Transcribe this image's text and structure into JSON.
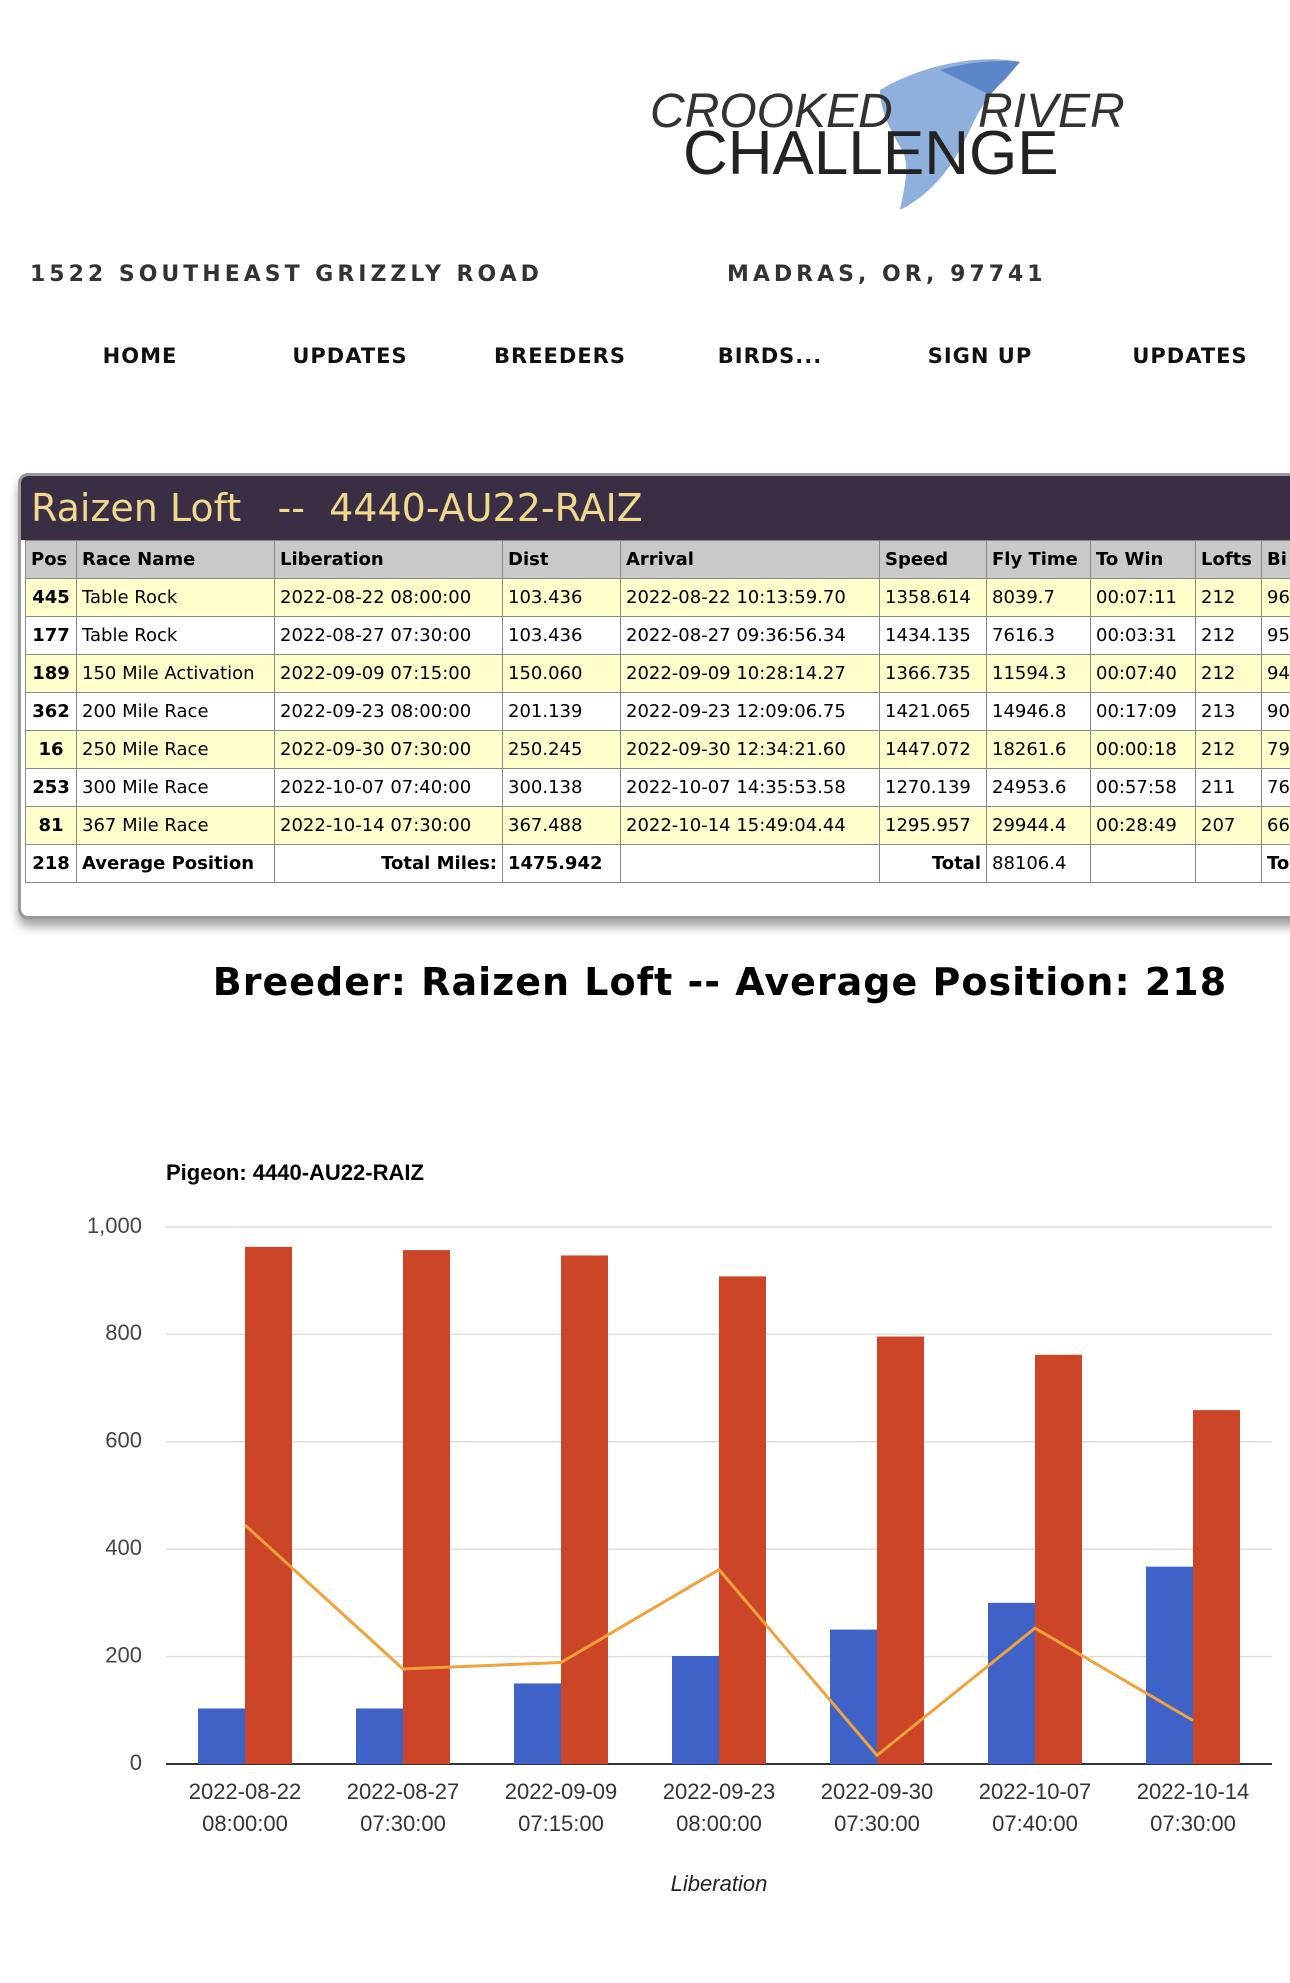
{
  "logo": {
    "line1_left": "CROOKED",
    "line1_right": "RIVER",
    "line2": "CHALLENGE"
  },
  "address": {
    "street": "1522 SOUTHEAST GRIZZLY ROAD",
    "city": "MADRAS, OR, 97741"
  },
  "nav": [
    "HOME",
    "UPDATES",
    "BREEDERS",
    "BIRDS...",
    "SIGN UP",
    "UPDATES"
  ],
  "table": {
    "title_name": "Raizen Loft",
    "title_sep": "--",
    "title_band": "4440-AU22-RAIZ",
    "columns": [
      "Pos",
      "Race Name",
      "Liberation",
      "Dist",
      "Arrival",
      "Speed",
      "Fly Time",
      "To Win",
      "Lofts",
      "Bi"
    ],
    "rows": [
      [
        "445",
        "Table Rock",
        "2022-08-22 08:00:00",
        "103.436",
        "2022-08-22 10:13:59.70",
        "1358.614",
        "8039.7",
        "00:07:11",
        "212",
        "96"
      ],
      [
        "177",
        "Table Rock",
        "2022-08-27 07:30:00",
        "103.436",
        "2022-08-27 09:36:56.34",
        "1434.135",
        "7616.3",
        "00:03:31",
        "212",
        "95"
      ],
      [
        "189",
        "150 Mile Activation",
        "2022-09-09 07:15:00",
        "150.060",
        "2022-09-09 10:28:14.27",
        "1366.735",
        "11594.3",
        "00:07:40",
        "212",
        "94"
      ],
      [
        "362",
        "200 Mile Race",
        "2022-09-23 08:00:00",
        "201.139",
        "2022-09-23 12:09:06.75",
        "1421.065",
        "14946.8",
        "00:17:09",
        "213",
        "90"
      ],
      [
        "16",
        "250 Mile Race",
        "2022-09-30 07:30:00",
        "250.245",
        "2022-09-30 12:34:21.60",
        "1447.072",
        "18261.6",
        "00:00:18",
        "212",
        "79"
      ],
      [
        "253",
        "300 Mile Race",
        "2022-10-07 07:40:00",
        "300.138",
        "2022-10-07 14:35:53.58",
        "1270.139",
        "24953.6",
        "00:57:58",
        "211",
        "76"
      ],
      [
        "81",
        "367 Mile Race",
        "2022-10-14 07:30:00",
        "367.488",
        "2022-10-14 15:49:04.44",
        "1295.957",
        "29944.4",
        "00:28:49",
        "207",
        "66"
      ]
    ],
    "total": {
      "pos": "218",
      "label": "Average Position",
      "miles_label": "Total Miles:",
      "miles": "1475.942",
      "fly_label": "Total",
      "fly_time": "88106.4",
      "birds_partial": "To"
    }
  },
  "heading": "Breeder: Raizen Loft -- Average Position: 218",
  "chart_data": {
    "type": "bar",
    "title": "Pigeon: 4440-AU22-RAIZ",
    "x_label": "Liberation",
    "categories": [
      [
        "2022-08-22",
        "08:00:00"
      ],
      [
        "2022-08-27",
        "07:30:00"
      ],
      [
        "2022-09-09",
        "07:15:00"
      ],
      [
        "2022-09-23",
        "08:00:00"
      ],
      [
        "2022-09-30",
        "07:30:00"
      ],
      [
        "2022-10-07",
        "07:40:00"
      ],
      [
        "2022-10-14",
        "07:30:00"
      ]
    ],
    "series": [
      {
        "type": "bar",
        "color": "#3f62c8",
        "values": [
          103.436,
          103.436,
          150.06,
          201.139,
          250.245,
          300.138,
          367.488
        ]
      },
      {
        "type": "bar",
        "color": "#cc4527",
        "values": [
          963,
          957,
          947,
          908,
          796,
          762,
          659
        ]
      },
      {
        "type": "line",
        "color": "#f2a23a",
        "values": [
          445,
          177,
          189,
          362,
          16,
          253,
          81
        ]
      }
    ],
    "ylim": [
      0,
      1000
    ],
    "yticks": [
      0,
      200,
      400,
      600,
      800,
      {
        "value": 1000,
        "label": "1,000"
      }
    ],
    "grid": true
  }
}
